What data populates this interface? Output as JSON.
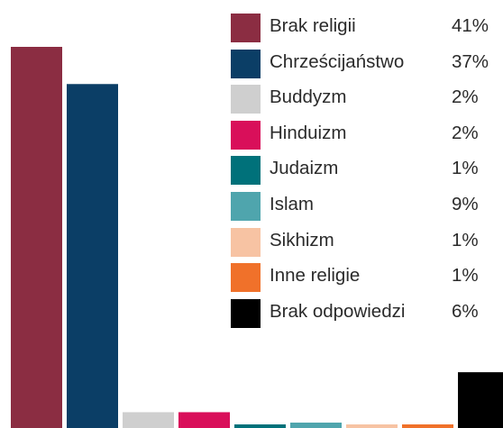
{
  "chart_data": {
    "type": "bar",
    "categories": [
      "Brak religii",
      "Chrześcijaństwo",
      "Buddyzm",
      "Hinduizm",
      "Judaizm",
      "Islam",
      "Sikhizm",
      "Inne religie",
      "Brak odpowiedzi"
    ],
    "values": [
      41,
      37,
      2,
      2,
      1,
      9,
      1,
      1,
      6
    ],
    "value_labels": [
      "41%",
      "37%",
      "2%",
      "2%",
      "1%",
      "9%",
      "1%",
      "1%",
      "6%"
    ],
    "colors": [
      "#8b2d42",
      "#0b3e66",
      "#cfcfcf",
      "#d90f5a",
      "#00717a",
      "#4fa5ad",
      "#f7c3a3",
      "#f0712a",
      "#000000"
    ],
    "ylim": [
      0,
      41
    ],
    "legend_position": "top-right",
    "grid": false,
    "axes_visible": false
  }
}
